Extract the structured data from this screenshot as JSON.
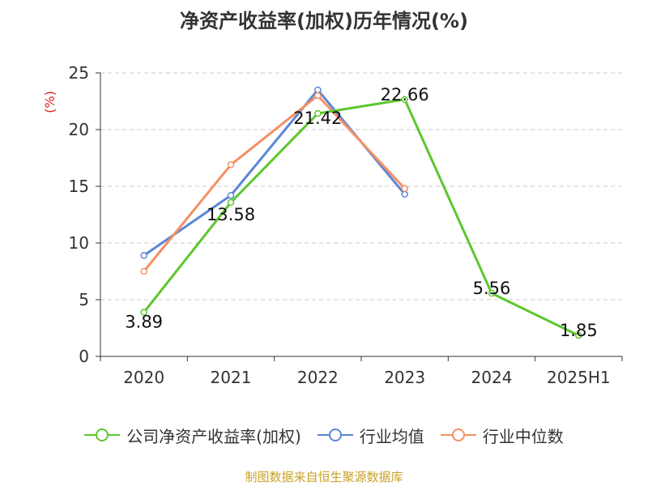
{
  "chart_data": {
    "type": "line",
    "title": "净资产收益率(加权)历年情况(%)",
    "ylabel": "(%)",
    "xlabel": "",
    "categories": [
      "2020",
      "2021",
      "2022",
      "2023",
      "2024",
      "2025H1"
    ],
    "ylim": [
      0,
      25
    ],
    "yticks": [
      0,
      5,
      10,
      15,
      20,
      25
    ],
    "grid": "horizontal dashed",
    "legend_position": "bottom",
    "series": [
      {
        "name": "公司净资产收益率(加权)",
        "color": "#5cc72e",
        "values": [
          3.89,
          13.58,
          21.42,
          22.66,
          5.56,
          1.85
        ],
        "labels": [
          "3.89",
          "13.58",
          "21.42",
          "22.66",
          "5.56",
          "1.85"
        ]
      },
      {
        "name": "行业均值",
        "color": "#5b86d6",
        "values": [
          8.9,
          14.2,
          23.5,
          14.3,
          null,
          null
        ]
      },
      {
        "name": "行业中位数",
        "color": "#f59064",
        "values": [
          7.5,
          16.9,
          23.0,
          14.8,
          null,
          null
        ]
      }
    ]
  },
  "footer": {
    "source": "制图数据来自恒生聚源数据库"
  }
}
